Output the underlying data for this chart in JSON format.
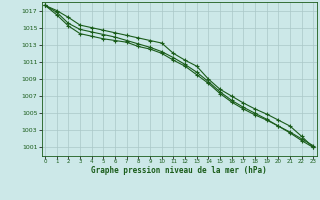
{
  "x": [
    0,
    1,
    2,
    3,
    4,
    5,
    6,
    7,
    8,
    9,
    10,
    11,
    12,
    13,
    14,
    15,
    16,
    17,
    18,
    19,
    20,
    21,
    22,
    23
  ],
  "line1": [
    1017.6,
    1017.0,
    1016.2,
    1015.3,
    1015.0,
    1014.7,
    1014.4,
    1014.1,
    1013.8,
    1013.5,
    1013.2,
    1012.0,
    1011.2,
    1010.5,
    1009.0,
    1007.8,
    1007.0,
    1006.2,
    1005.5,
    1004.9,
    1004.2,
    1003.5,
    1002.3,
    1001.0
  ],
  "line2": [
    1017.6,
    1016.8,
    1015.5,
    1014.8,
    1014.5,
    1014.2,
    1013.9,
    1013.5,
    1013.1,
    1012.7,
    1012.2,
    1011.5,
    1010.7,
    1009.8,
    1008.7,
    1007.5,
    1006.5,
    1005.7,
    1005.0,
    1004.3,
    1003.5,
    1002.7,
    1001.8,
    1001.0
  ],
  "line3": [
    1017.6,
    1016.5,
    1015.2,
    1014.3,
    1014.0,
    1013.7,
    1013.5,
    1013.3,
    1012.8,
    1012.5,
    1012.0,
    1011.2,
    1010.5,
    1009.5,
    1008.5,
    1007.3,
    1006.3,
    1005.5,
    1004.8,
    1004.2,
    1003.5,
    1002.8,
    1002.0,
    1001.2
  ],
  "ylim_min": 1000,
  "ylim_max": 1018,
  "yticks": [
    1001,
    1003,
    1005,
    1007,
    1009,
    1011,
    1013,
    1015,
    1017
  ],
  "line_color": "#1a5c1a",
  "bg_color": "#cce8e8",
  "grid_color": "#aac8c8",
  "xlabel": "Graphe pression niveau de la mer (hPa)",
  "marker": "+",
  "figsize": [
    3.2,
    2.0
  ],
  "dpi": 100
}
